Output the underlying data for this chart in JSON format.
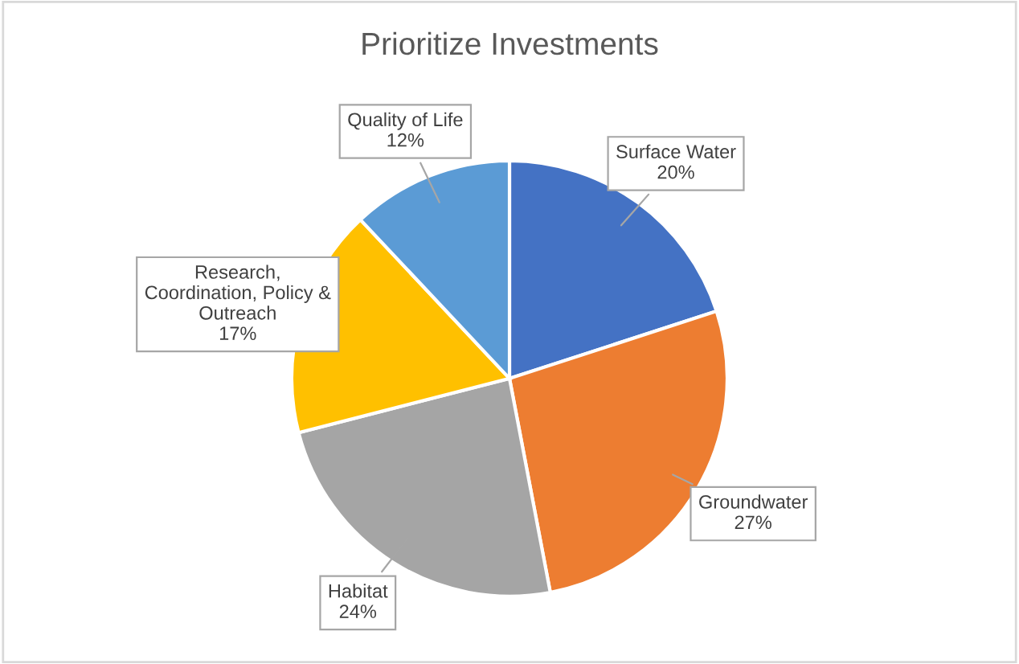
{
  "chart_data": {
    "type": "pie",
    "title": "Prioritize Investments",
    "categories": [
      "Surface Water",
      "Groundwater",
      "Habitat",
      "Research, Coordination, Policy & Outreach",
      "Quality of Life"
    ],
    "values": [
      20,
      27,
      24,
      17,
      12
    ],
    "colors": [
      "#4472c4",
      "#ed7d31",
      "#a5a5a5",
      "#ffc000",
      "#5b9bd5"
    ],
    "value_labels": [
      "20%",
      "27%",
      "24%",
      "17%",
      "12%"
    ]
  }
}
